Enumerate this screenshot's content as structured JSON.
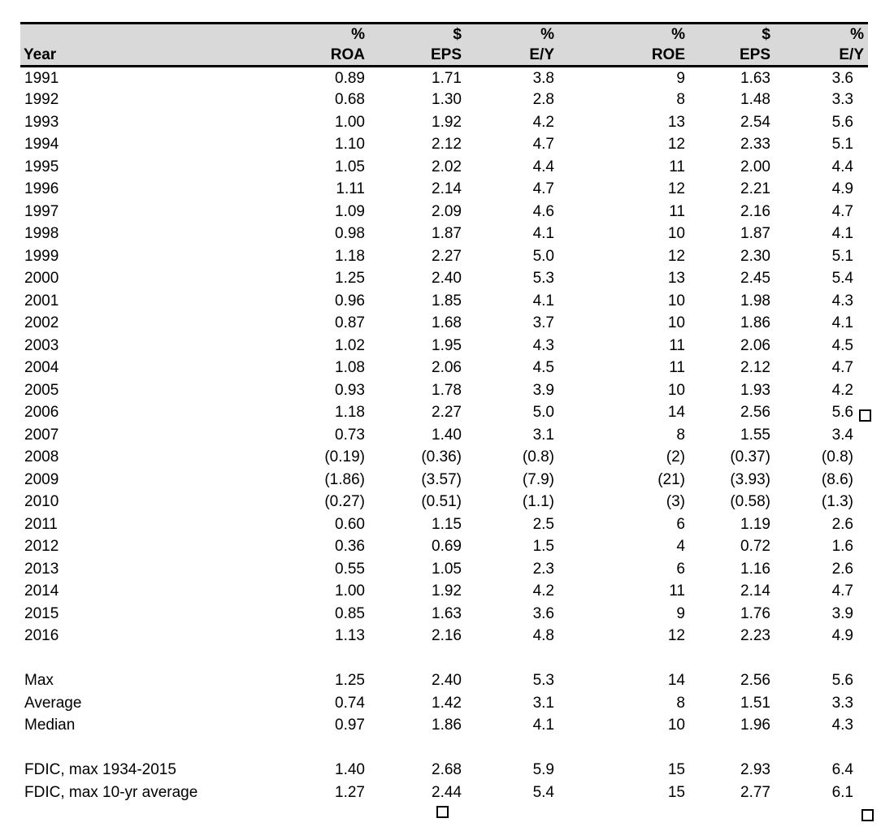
{
  "colors": {
    "page_background": "#ffffff",
    "header_background": "#d9d9d9",
    "rule_color": "#000000",
    "text_color": "#000000"
  },
  "icons": {
    "missing_glyph": "□"
  },
  "table": {
    "header": {
      "units": [
        "",
        "%",
        "$",
        "%",
        "%",
        "$",
        "%"
      ],
      "labels": [
        "Year",
        "ROA",
        "EPS",
        "E/Y",
        "ROE",
        "EPS",
        "E/Y"
      ]
    },
    "year_rows": [
      {
        "label": "1991",
        "values": [
          "0.89",
          "1.71",
          "3.8",
          "9",
          "1.63",
          "3.6"
        ],
        "marker": false
      },
      {
        "label": "1992",
        "values": [
          "0.68",
          "1.30",
          "2.8",
          "8",
          "1.48",
          "3.3"
        ],
        "marker": false
      },
      {
        "label": "1993",
        "values": [
          "1.00",
          "1.92",
          "4.2",
          "13",
          "2.54",
          "5.6"
        ],
        "marker": false
      },
      {
        "label": "1994",
        "values": [
          "1.10",
          "2.12",
          "4.7",
          "12",
          "2.33",
          "5.1"
        ],
        "marker": false
      },
      {
        "label": "1995",
        "values": [
          "1.05",
          "2.02",
          "4.4",
          "11",
          "2.00",
          "4.4"
        ],
        "marker": false
      },
      {
        "label": "1996",
        "values": [
          "1.11",
          "2.14",
          "4.7",
          "12",
          "2.21",
          "4.9"
        ],
        "marker": false
      },
      {
        "label": "1997",
        "values": [
          "1.09",
          "2.09",
          "4.6",
          "11",
          "2.16",
          "4.7"
        ],
        "marker": false
      },
      {
        "label": "1998",
        "values": [
          "0.98",
          "1.87",
          "4.1",
          "10",
          "1.87",
          "4.1"
        ],
        "marker": false
      },
      {
        "label": "1999",
        "values": [
          "1.18",
          "2.27",
          "5.0",
          "12",
          "2.30",
          "5.1"
        ],
        "marker": false
      },
      {
        "label": "2000",
        "values": [
          "1.25",
          "2.40",
          "5.3",
          "13",
          "2.45",
          "5.4"
        ],
        "marker": false
      },
      {
        "label": "2001",
        "values": [
          "0.96",
          "1.85",
          "4.1",
          "10",
          "1.98",
          "4.3"
        ],
        "marker": false
      },
      {
        "label": "2002",
        "values": [
          "0.87",
          "1.68",
          "3.7",
          "10",
          "1.86",
          "4.1"
        ],
        "marker": false
      },
      {
        "label": "2003",
        "values": [
          "1.02",
          "1.95",
          "4.3",
          "11",
          "2.06",
          "4.5"
        ],
        "marker": false
      },
      {
        "label": "2004",
        "values": [
          "1.08",
          "2.06",
          "4.5",
          "11",
          "2.12",
          "4.7"
        ],
        "marker": false
      },
      {
        "label": "2005",
        "values": [
          "0.93",
          "1.78",
          "3.9",
          "10",
          "1.93",
          "4.2"
        ],
        "marker": false
      },
      {
        "label": "2006",
        "values": [
          "1.18",
          "2.27",
          "5.0",
          "14",
          "2.56",
          "5.6"
        ],
        "marker": true
      },
      {
        "label": "2007",
        "values": [
          "0.73",
          "1.40",
          "3.1",
          "8",
          "1.55",
          "3.4"
        ],
        "marker": false
      },
      {
        "label": "2008",
        "values": [
          "(0.19)",
          "(0.36)",
          "(0.8)",
          "(2)",
          "(0.37)",
          "(0.8)"
        ],
        "marker": false
      },
      {
        "label": "2009",
        "values": [
          "(1.86)",
          "(3.57)",
          "(7.9)",
          "(21)",
          "(3.93)",
          "(8.6)"
        ],
        "marker": false
      },
      {
        "label": "2010",
        "values": [
          "(0.27)",
          "(0.51)",
          "(1.1)",
          "(3)",
          "(0.58)",
          "(1.3)"
        ],
        "marker": false
      },
      {
        "label": "2011",
        "values": [
          "0.60",
          "1.15",
          "2.5",
          "6",
          "1.19",
          "2.6"
        ],
        "marker": false
      },
      {
        "label": "2012",
        "values": [
          "0.36",
          "0.69",
          "1.5",
          "4",
          "0.72",
          "1.6"
        ],
        "marker": false
      },
      {
        "label": "2013",
        "values": [
          "0.55",
          "1.05",
          "2.3",
          "6",
          "1.16",
          "2.6"
        ],
        "marker": false
      },
      {
        "label": "2014",
        "values": [
          "1.00",
          "1.92",
          "4.2",
          "11",
          "2.14",
          "4.7"
        ],
        "marker": false
      },
      {
        "label": "2015",
        "values": [
          "0.85",
          "1.63",
          "3.6",
          "9",
          "1.76",
          "3.9"
        ],
        "marker": false
      },
      {
        "label": "2016",
        "values": [
          "1.13",
          "2.16",
          "4.8",
          "12",
          "2.23",
          "4.9"
        ],
        "marker": false
      }
    ],
    "summary_rows": [
      {
        "label": "Max",
        "values": [
          "1.25",
          "2.40",
          "5.3",
          "14",
          "2.56",
          "5.6"
        ],
        "marker": false
      },
      {
        "label": "Average",
        "values": [
          "0.74",
          "1.42",
          "3.1",
          "8",
          "1.51",
          "3.3"
        ],
        "marker": false
      },
      {
        "label": "Median",
        "values": [
          "0.97",
          "1.86",
          "4.1",
          "10",
          "1.96",
          "4.3"
        ],
        "marker": false
      }
    ],
    "fdic_rows": [
      {
        "label": "FDIC, max 1934-2015",
        "values": [
          "1.40",
          "2.68",
          "5.9",
          "15",
          "2.93",
          "6.4"
        ],
        "marker": false
      },
      {
        "label": "FDIC, max 10-yr average",
        "values": [
          "1.27",
          "2.44",
          "5.4",
          "15",
          "2.77",
          "6.1"
        ],
        "marker": false
      }
    ]
  }
}
